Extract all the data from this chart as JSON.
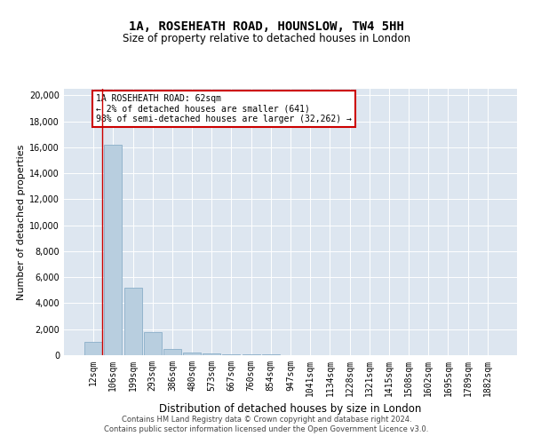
{
  "title": "1A, ROSEHEATH ROAD, HOUNSLOW, TW4 5HH",
  "subtitle": "Size of property relative to detached houses in London",
  "xlabel": "Distribution of detached houses by size in London",
  "ylabel": "Number of detached properties",
  "categories": [
    "12sqm",
    "106sqm",
    "199sqm",
    "293sqm",
    "386sqm",
    "480sqm",
    "573sqm",
    "667sqm",
    "760sqm",
    "854sqm",
    "947sqm",
    "1041sqm",
    "1134sqm",
    "1228sqm",
    "1321sqm",
    "1415sqm",
    "1508sqm",
    "1602sqm",
    "1695sqm",
    "1789sqm",
    "1882sqm"
  ],
  "bar_values": [
    1050,
    16200,
    5200,
    1750,
    500,
    200,
    130,
    100,
    75,
    50,
    30,
    20,
    15,
    12,
    10,
    8,
    6,
    5,
    4,
    3,
    2
  ],
  "bar_color": "#b8cedf",
  "bar_edgecolor": "#8aaec8",
  "annotation_text": "1A ROSEHEATH ROAD: 62sqm\n← 2% of detached houses are smaller (641)\n98% of semi-detached houses are larger (32,262) →",
  "annotation_box_facecolor": "#ffffff",
  "annotation_box_edgecolor": "#cc0000",
  "redline_x": 0.43,
  "ylim": [
    0,
    20500
  ],
  "yticks": [
    0,
    2000,
    4000,
    6000,
    8000,
    10000,
    12000,
    14000,
    16000,
    18000,
    20000
  ],
  "bg_color": "#dde6f0",
  "footer_line1": "Contains HM Land Registry data © Crown copyright and database right 2024.",
  "footer_line2": "Contains public sector information licensed under the Open Government Licence v3.0.",
  "title_fontsize": 10,
  "subtitle_fontsize": 8.5,
  "ylabel_fontsize": 8,
  "xlabel_fontsize": 8.5,
  "tick_fontsize": 7,
  "annotation_fontsize": 7,
  "footer_fontsize": 6
}
